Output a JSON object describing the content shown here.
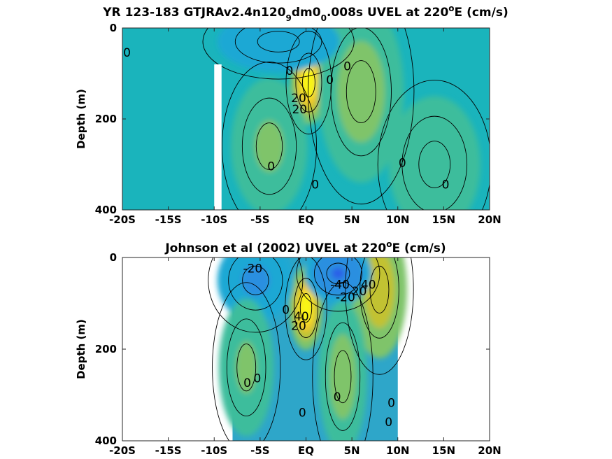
{
  "chart_data": [
    {
      "type": "heatmap",
      "panel": "top",
      "title": "YR 123-183 GTJRAv2.4n120",
      "title_parts": [
        {
          "text": "YR 123-183 GTJRAv2.4n120",
          "shift": "none"
        },
        {
          "text": "9",
          "shift": "sub"
        },
        {
          "text": "dm0",
          "shift": "none"
        },
        {
          "text": "0",
          "shift": "sub"
        },
        {
          "text": ".008s UVEL at 220",
          "shift": "none"
        },
        {
          "text": "o",
          "shift": "super"
        },
        {
          "text": "E (cm/s)",
          "shift": "none"
        }
      ],
      "xlabel": "",
      "ylabel": "Depth (m)",
      "xlim": [
        -20,
        20
      ],
      "ylim": [
        400,
        0
      ],
      "xticks": [
        -20,
        -15,
        -10,
        -5,
        0,
        5,
        10,
        15,
        20
      ],
      "xticklabels": [
        "-20S",
        "-15S",
        "-10S",
        "-5S",
        "EQ",
        "5N",
        "10N",
        "15N",
        "20N"
      ],
      "yticks": [
        0,
        200,
        400
      ],
      "yticklabels": [
        "0",
        "200",
        "400"
      ],
      "background_color": "#1ab4bc",
      "missing_regions": [
        {
          "lat_range": [
            -10,
            -9.2
          ],
          "depth_range": [
            80,
            400
          ]
        }
      ],
      "features": [
        {
          "kind": "jet",
          "name": "Equatorial Undercurrent",
          "lat": 0.3,
          "depth": 120,
          "peak": 90,
          "lat_width": 1.2,
          "depth_width": 55
        },
        {
          "kind": "core",
          "lat": 6.0,
          "depth": 140,
          "peak": 18,
          "lat_width": 2.8,
          "depth_width": 120
        },
        {
          "kind": "core",
          "lat": -4.0,
          "depth": 260,
          "peak": 14,
          "lat_width": 2.5,
          "depth_width": 90
        },
        {
          "kind": "core",
          "lat": -3.0,
          "depth": 30,
          "peak": -20,
          "lat_width": 4.0,
          "depth_width": 40
        },
        {
          "kind": "core",
          "lat": 14.0,
          "depth": 300,
          "peak": 10,
          "lat_width": 3.0,
          "depth_width": 90
        }
      ],
      "contour_labels": [
        {
          "text": "0",
          "lat": -19.5,
          "depth": 55
        },
        {
          "text": "0",
          "lat": -1.8,
          "depth": 95
        },
        {
          "text": "0",
          "lat": 2.6,
          "depth": 115
        },
        {
          "text": "0",
          "lat": 4.5,
          "depth": 85
        },
        {
          "text": "20",
          "lat": -0.8,
          "depth": 155
        },
        {
          "text": "20",
          "lat": -0.7,
          "depth": 180
        },
        {
          "text": "0",
          "lat": -3.8,
          "depth": 305
        },
        {
          "text": "0",
          "lat": 1.0,
          "depth": 345
        },
        {
          "text": "0",
          "lat": 10.5,
          "depth": 298
        },
        {
          "text": "0",
          "lat": 15.2,
          "depth": 345
        }
      ]
    },
    {
      "type": "heatmap",
      "panel": "bottom",
      "title": "Johnson et al (2002) UVEL at 220",
      "title_parts": [
        {
          "text": "Johnson et al (2002) UVEL at 220",
          "shift": "none"
        },
        {
          "text": "o",
          "shift": "super"
        },
        {
          "text": "E (cm/s)",
          "shift": "none"
        }
      ],
      "xlabel": "",
      "ylabel": "Depth (m)",
      "xlim": [
        -20,
        20
      ],
      "ylim": [
        400,
        0
      ],
      "xticks": [
        -20,
        -15,
        -10,
        -5,
        0,
        5,
        10,
        15,
        20
      ],
      "xticklabels": [
        "-20S",
        "-15S",
        "-10S",
        "-5S",
        "EQ",
        "5N",
        "10N",
        "15N",
        "20N"
      ],
      "yticks": [
        0,
        200,
        400
      ],
      "yticklabels": [
        "0",
        "200",
        "400"
      ],
      "background_color": "#2ea6c9",
      "data_lat_range": [
        -8,
        10
      ],
      "features": [
        {
          "kind": "jet",
          "name": "Equatorial Undercurrent",
          "lat": 0.0,
          "depth": 110,
          "peak": 95,
          "lat_width": 1.1,
          "depth_width": 55
        },
        {
          "kind": "core",
          "lat": 8.0,
          "depth": 70,
          "peak": 45,
          "lat_width": 1.8,
          "depth_width": 90
        },
        {
          "kind": "core",
          "lat": 3.5,
          "depth": 35,
          "peak": -45,
          "lat_width": 2.2,
          "depth_width": 40
        },
        {
          "kind": "core",
          "lat": -5.5,
          "depth": 50,
          "peak": -25,
          "lat_width": 2.5,
          "depth_width": 55
        },
        {
          "kind": "core",
          "lat": 4.0,
          "depth": 260,
          "peak": 20,
          "lat_width": 1.6,
          "depth_width": 100
        },
        {
          "kind": "core",
          "lat": -6.5,
          "depth": 240,
          "peak": 14,
          "lat_width": 1.8,
          "depth_width": 90
        }
      ],
      "contour_labels": [
        {
          "text": "-20",
          "lat": -5.8,
          "depth": 25
        },
        {
          "text": "-40",
          "lat": 3.7,
          "depth": 60
        },
        {
          "text": "-20",
          "lat": 4.3,
          "depth": 88
        },
        {
          "text": "40",
          "lat": 6.8,
          "depth": 60
        },
        {
          "text": "20",
          "lat": 5.8,
          "depth": 75
        },
        {
          "text": "0",
          "lat": -2.2,
          "depth": 115
        },
        {
          "text": "40",
          "lat": -0.5,
          "depth": 130
        },
        {
          "text": "20",
          "lat": -0.8,
          "depth": 150
        },
        {
          "text": "0",
          "lat": -6.4,
          "depth": 275
        },
        {
          "text": "0",
          "lat": -5.3,
          "depth": 265
        },
        {
          "text": "0",
          "lat": 3.4,
          "depth": 305
        },
        {
          "text": "0",
          "lat": -0.4,
          "depth": 340
        },
        {
          "text": "0",
          "lat": 9.3,
          "depth": 318
        },
        {
          "text": "0",
          "lat": 9.0,
          "depth": 360
        }
      ]
    }
  ]
}
